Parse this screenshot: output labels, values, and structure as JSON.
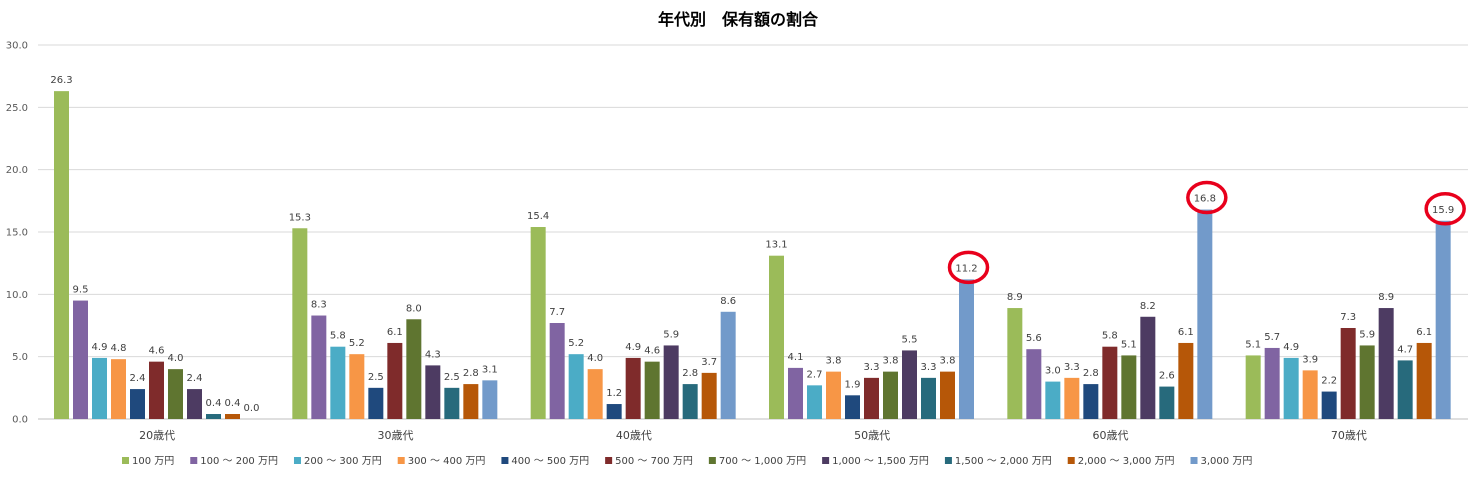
{
  "chart_data": {
    "type": "bar",
    "title": "年代別　保有額の割合",
    "xlabel": "",
    "ylabel": "",
    "ylim": [
      0,
      30
    ],
    "yticks": [
      "0.0",
      "5.0",
      "10.0",
      "15.0",
      "20.0",
      "25.0",
      "30.0"
    ],
    "grid": true,
    "legend_position": "bottom",
    "categories": [
      "20歳代",
      "30歳代",
      "40歳代",
      "50歳代",
      "60歳代",
      "70歳代"
    ],
    "series": [
      {
        "name": "100 万円",
        "color": "#9BBB59",
        "values": [
          26.3,
          15.3,
          15.4,
          13.1,
          8.9,
          5.1
        ]
      },
      {
        "name": "100 ～ 200 万円",
        "color": "#8064A2",
        "values": [
          9.5,
          8.3,
          7.7,
          4.1,
          5.6,
          5.7
        ]
      },
      {
        "name": "200 ～ 300 万円",
        "color": "#4BACC6",
        "values": [
          4.9,
          5.8,
          5.2,
          2.7,
          3.0,
          4.9
        ]
      },
      {
        "name": "300 ～ 400 万円",
        "color": "#F79646",
        "values": [
          4.8,
          5.2,
          4.0,
          3.8,
          3.3,
          3.9
        ]
      },
      {
        "name": "400 ～ 500 万円",
        "color": "#1F497D",
        "values": [
          2.4,
          2.5,
          1.2,
          1.9,
          2.8,
          2.2
        ]
      },
      {
        "name": "500 ～ 700 万円",
        "color": "#7F2B2B",
        "values": [
          4.6,
          6.1,
          4.9,
          3.3,
          5.8,
          7.3
        ]
      },
      {
        "name": "700 ～ 1,000 万円",
        "color": "#5F7530",
        "values": [
          4.0,
          8.0,
          4.6,
          3.8,
          5.1,
          5.9
        ]
      },
      {
        "name": "1,000 ～ 1,500 万円",
        "color": "#4D3B62",
        "values": [
          2.4,
          4.3,
          5.9,
          5.5,
          8.2,
          8.9
        ]
      },
      {
        "name": "1,500 ～ 2,000 万円",
        "color": "#276A7C",
        "values": [
          0.4,
          2.5,
          2.8,
          3.3,
          2.6,
          4.7
        ]
      },
      {
        "name": "2,000 ～ 3,000 万円",
        "color": "#B65708",
        "values": [
          0.4,
          2.8,
          3.7,
          3.8,
          6.1,
          6.1
        ]
      },
      {
        "name": "3,000 万円",
        "color": "#729ACA",
        "values": [
          0.0,
          3.1,
          8.6,
          11.2,
          16.8,
          15.9
        ]
      }
    ],
    "annotations": [
      {
        "type": "circle",
        "series": 10,
        "category": 3,
        "color": "#E8001C"
      },
      {
        "type": "circle",
        "series": 10,
        "category": 4,
        "color": "#E8001C"
      },
      {
        "type": "circle",
        "series": 10,
        "category": 5,
        "color": "#E8001C"
      }
    ]
  }
}
